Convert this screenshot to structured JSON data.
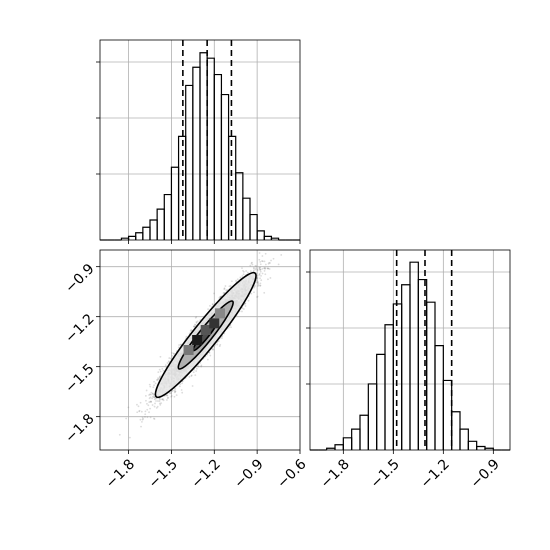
{
  "chart_data": [
    {
      "panel": "top-left",
      "type": "histogram",
      "xlim": [
        -2.0,
        -0.6
      ],
      "bins": {
        "start": -2.0,
        "width": 0.05
      },
      "counts": [
        0,
        0,
        0,
        1,
        2,
        4,
        7,
        11,
        17,
        25,
        40,
        57,
        85,
        95,
        103,
        100,
        91,
        80,
        57,
        37,
        23,
        14,
        5,
        2,
        1,
        0,
        0,
        0
      ],
      "ymax": 110,
      "quantiles": [
        -1.42,
        -1.25,
        -1.08
      ],
      "grid": true
    },
    {
      "panel": "bottom-left",
      "type": "scatter",
      "xlim": [
        -2.0,
        -0.6
      ],
      "ylim": [
        -2.0,
        -0.8
      ],
      "mean": [
        -1.26,
        -1.31
      ],
      "std": [
        0.16,
        0.17
      ],
      "correlation": 0.95,
      "samples": 4000,
      "contour_levels": [
        "1-sigma",
        "2-sigma"
      ],
      "xticks": [
        "−1.8",
        "−1.5",
        "−1.2",
        "−0.9",
        "−0.6"
      ],
      "yticks": [
        "−0.9",
        "−1.2",
        "−1.5",
        "−1.8"
      ],
      "grid": true
    },
    {
      "panel": "bottom-right",
      "type": "histogram",
      "xlim": [
        -2.0,
        -0.8
      ],
      "bins": {
        "start": -2.0,
        "width": 0.05
      },
      "counts": [
        0,
        0,
        1,
        3,
        7,
        12,
        20,
        38,
        55,
        72,
        84,
        95,
        108,
        98,
        85,
        60,
        40,
        22,
        12,
        5,
        2,
        1,
        0,
        0
      ],
      "ymax": 115,
      "quantiles": [
        -1.48,
        -1.31,
        -1.15
      ],
      "xticks": [
        "−1.8",
        "−1.5",
        "−1.2",
        "−0.9"
      ],
      "grid": true
    }
  ],
  "colors": {
    "ink": "#000000",
    "grid": "#b0b0b0",
    "points": "#808080"
  }
}
